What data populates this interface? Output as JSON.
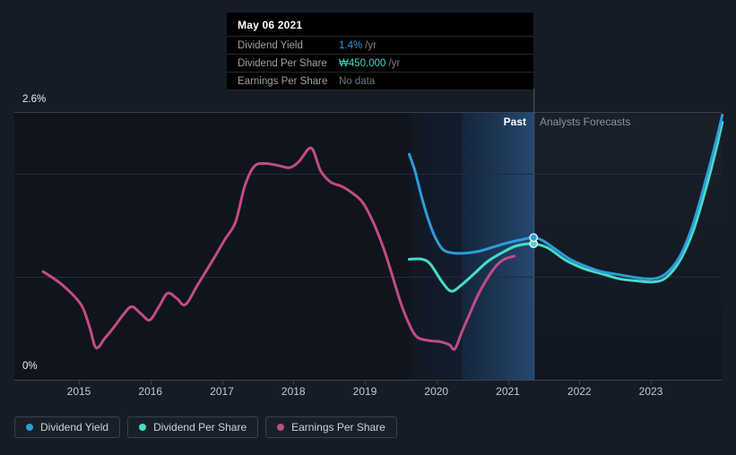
{
  "tooltip": {
    "date": "May 06 2021",
    "rows": [
      {
        "label": "Dividend Yield",
        "value": "1.4%",
        "unit": "/yr"
      },
      {
        "label": "Dividend Per Share",
        "value": "₩450.000",
        "unit": "/yr"
      },
      {
        "label": "Earnings Per Share",
        "value": "No data",
        "unit": ""
      }
    ]
  },
  "legend": [
    {
      "label": "Dividend Yield",
      "color": "#2D9CDB"
    },
    {
      "label": "Dividend Per Share",
      "color": "#46DCC9"
    },
    {
      "label": "Earnings Per Share",
      "color": "#C24B86"
    }
  ],
  "chart_data": {
    "type": "line",
    "title": "Dividend history and forecast",
    "x_axis": {
      "ticks": [
        2015,
        2016,
        2017,
        2018,
        2019,
        2020,
        2021,
        2022,
        2023
      ],
      "range": [
        2014.1,
        2024.05
      ]
    },
    "y_axis": {
      "unit": "%",
      "range": [
        0,
        2.6
      ],
      "gridlines": [
        0,
        1,
        2,
        2.6
      ],
      "top_label": "2.6%",
      "bottom_label": "0%"
    },
    "annotations": {
      "past": "Past",
      "forecast": "Analysts Forecasts"
    },
    "regions": {
      "past_data_start": 2019.62,
      "highlight_year_start": 2020.36,
      "divider": 2021.36
    },
    "series": [
      {
        "name": "Dividend Yield",
        "color": "#2D9CDB",
        "points": [
          [
            2019.62,
            2.19
          ],
          [
            2019.7,
            2.03
          ],
          [
            2019.8,
            1.76
          ],
          [
            2019.9,
            1.53
          ],
          [
            2020.0,
            1.36
          ],
          [
            2020.1,
            1.26
          ],
          [
            2020.24,
            1.23
          ],
          [
            2020.43,
            1.23
          ],
          [
            2020.61,
            1.25
          ],
          [
            2020.8,
            1.29
          ],
          [
            2021.0,
            1.33
          ],
          [
            2021.19,
            1.36
          ],
          [
            2021.36,
            1.38
          ],
          [
            2021.49,
            1.35
          ],
          [
            2021.68,
            1.26
          ],
          [
            2021.87,
            1.17
          ],
          [
            2022.06,
            1.11
          ],
          [
            2022.31,
            1.05
          ],
          [
            2022.56,
            1.02
          ],
          [
            2022.81,
            0.99
          ],
          [
            2023.03,
            0.98
          ],
          [
            2023.21,
            1.03
          ],
          [
            2023.4,
            1.19
          ],
          [
            2023.59,
            1.51
          ],
          [
            2023.78,
            1.97
          ],
          [
            2023.91,
            2.31
          ],
          [
            2024.0,
            2.57
          ]
        ]
      },
      {
        "name": "Dividend Per Share",
        "color": "#46DCC9",
        "points": [
          [
            2019.62,
            1.17
          ],
          [
            2019.8,
            1.17
          ],
          [
            2019.92,
            1.12
          ],
          [
            2020.08,
            0.95
          ],
          [
            2020.21,
            0.86
          ],
          [
            2020.35,
            0.92
          ],
          [
            2020.53,
            1.03
          ],
          [
            2020.72,
            1.15
          ],
          [
            2020.91,
            1.23
          ],
          [
            2021.12,
            1.3
          ],
          [
            2021.36,
            1.32
          ],
          [
            2021.56,
            1.28
          ],
          [
            2021.81,
            1.16
          ],
          [
            2022.06,
            1.08
          ],
          [
            2022.31,
            1.03
          ],
          [
            2022.56,
            0.98
          ],
          [
            2022.81,
            0.96
          ],
          [
            2023.03,
            0.95
          ],
          [
            2023.21,
            0.99
          ],
          [
            2023.4,
            1.15
          ],
          [
            2023.59,
            1.44
          ],
          [
            2023.78,
            1.88
          ],
          [
            2023.91,
            2.23
          ],
          [
            2024.0,
            2.5
          ]
        ]
      },
      {
        "name": "Earnings Per Share",
        "color": "#C24B86",
        "points": [
          [
            2014.5,
            1.05
          ],
          [
            2014.77,
            0.92
          ],
          [
            2015.03,
            0.73
          ],
          [
            2015.15,
            0.51
          ],
          [
            2015.24,
            0.31
          ],
          [
            2015.36,
            0.4
          ],
          [
            2015.49,
            0.51
          ],
          [
            2015.63,
            0.64
          ],
          [
            2015.74,
            0.71
          ],
          [
            2015.87,
            0.64
          ],
          [
            2015.99,
            0.58
          ],
          [
            2016.12,
            0.71
          ],
          [
            2016.24,
            0.84
          ],
          [
            2016.37,
            0.79
          ],
          [
            2016.49,
            0.73
          ],
          [
            2016.66,
            0.92
          ],
          [
            2016.88,
            1.17
          ],
          [
            2017.04,
            1.36
          ],
          [
            2017.19,
            1.53
          ],
          [
            2017.32,
            1.88
          ],
          [
            2017.45,
            2.07
          ],
          [
            2017.6,
            2.1
          ],
          [
            2017.79,
            2.08
          ],
          [
            2017.95,
            2.06
          ],
          [
            2018.08,
            2.12
          ],
          [
            2018.25,
            2.25
          ],
          [
            2018.38,
            2.03
          ],
          [
            2018.52,
            1.92
          ],
          [
            2018.67,
            1.88
          ],
          [
            2018.79,
            1.83
          ],
          [
            2018.96,
            1.73
          ],
          [
            2019.11,
            1.54
          ],
          [
            2019.26,
            1.28
          ],
          [
            2019.38,
            1.02
          ],
          [
            2019.51,
            0.73
          ],
          [
            2019.64,
            0.51
          ],
          [
            2019.74,
            0.41
          ],
          [
            2019.9,
            0.38
          ],
          [
            2020.05,
            0.37
          ],
          [
            2020.18,
            0.34
          ],
          [
            2020.26,
            0.3
          ],
          [
            2020.36,
            0.47
          ],
          [
            2020.46,
            0.63
          ],
          [
            2020.58,
            0.82
          ],
          [
            2020.7,
            0.97
          ],
          [
            2020.83,
            1.1
          ],
          [
            2020.95,
            1.17
          ],
          [
            2021.09,
            1.2
          ]
        ]
      }
    ],
    "markers": [
      {
        "series": "Dividend Yield",
        "x": 2021.36,
        "y": 1.38
      },
      {
        "series": "Dividend Per Share",
        "x": 2021.36,
        "y": 1.32
      }
    ]
  }
}
